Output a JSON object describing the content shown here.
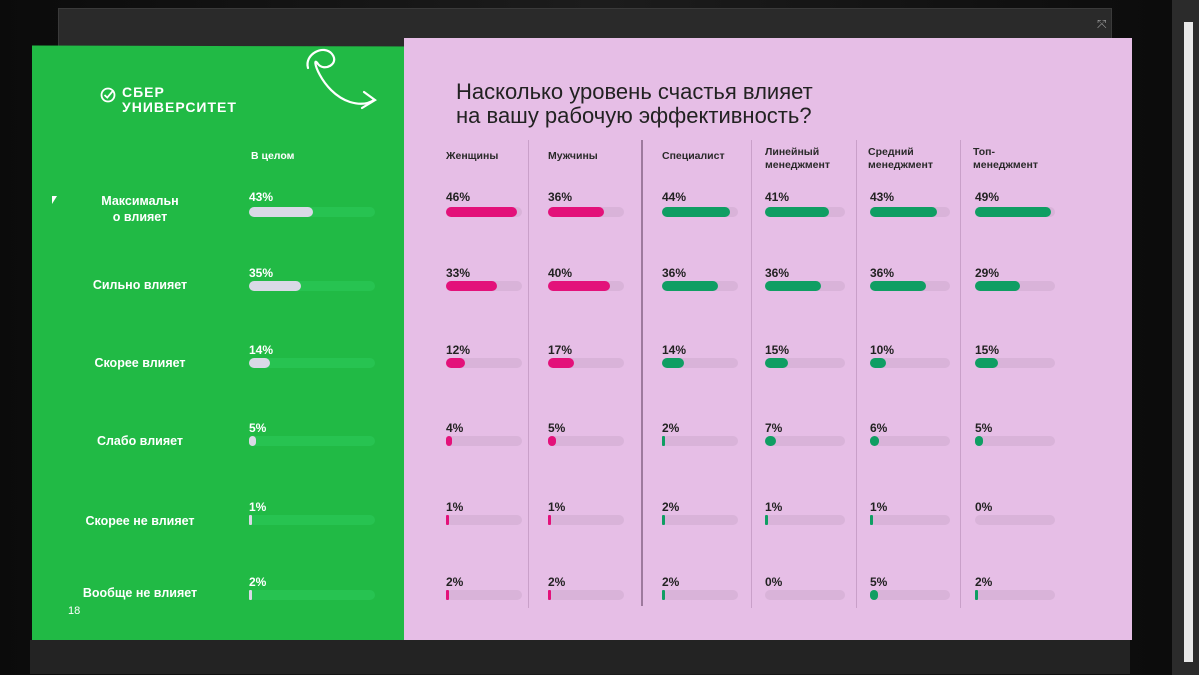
{
  "slide": {
    "logo_line1": "СБЕР",
    "logo_line2": "УНИВЕРСИТЕТ",
    "title_line1": "Насколько уровень счастья влияет",
    "title_line2": "на вашу рабочую эффективность?",
    "page_number": "18"
  },
  "colors": {
    "left_bg": "#21ba45",
    "right_bg": "#e6bee6",
    "overall_fill": "#d9d9e6",
    "overall_track": "#27c351",
    "gender_fill": "#e3117a",
    "role_fill": "#0f9e63",
    "track_pink": "#d9b3d9"
  },
  "chart_data": {
    "type": "bar",
    "categories": [
      "Максимальн\nо влияет",
      "Сильно влияет",
      "Скорее влияет",
      "Слабо влияет",
      "Скорее не влияет",
      "Вообще не влияет"
    ],
    "series": [
      {
        "name": "В целом",
        "values": [
          43,
          35,
          14,
          5,
          1,
          2
        ],
        "labels": [
          "43%",
          "35%",
          "14%",
          "5%",
          "1%",
          "2%"
        ]
      },
      {
        "name": "Женщины",
        "values": [
          46,
          33,
          12,
          4,
          1,
          2
        ],
        "labels": [
          "46%",
          "33%",
          "12%",
          "4%",
          "1%",
          "2%"
        ]
      },
      {
        "name": "Мужчины",
        "values": [
          36,
          40,
          17,
          5,
          1,
          2
        ],
        "labels": [
          "36%",
          "40%",
          "17%",
          "5%",
          "1%",
          "2%"
        ]
      },
      {
        "name": "Специалист",
        "values": [
          44,
          36,
          14,
          2,
          2,
          2
        ],
        "labels": [
          "44%",
          "36%",
          "14%",
          "2%",
          "2%",
          "2%"
        ]
      },
      {
        "name": "Линейный\nменеджмент",
        "values": [
          41,
          36,
          15,
          7,
          1,
          0
        ],
        "labels": [
          "41%",
          "36%",
          "15%",
          "7%",
          "1%",
          "0%"
        ]
      },
      {
        "name": "Средний\nменеджмент",
        "values": [
          43,
          36,
          10,
          6,
          1,
          5
        ],
        "labels": [
          "43%",
          "36%",
          "10%",
          "6%",
          "1%",
          "5%"
        ]
      },
      {
        "name": "Топ-\nменеджмент",
        "values": [
          49,
          29,
          15,
          5,
          0,
          2
        ],
        "labels": [
          "49%",
          "29%",
          "15%",
          "5%",
          "0%",
          "2%"
        ]
      }
    ],
    "xlim": [
      0,
      100
    ],
    "unit": "%"
  }
}
